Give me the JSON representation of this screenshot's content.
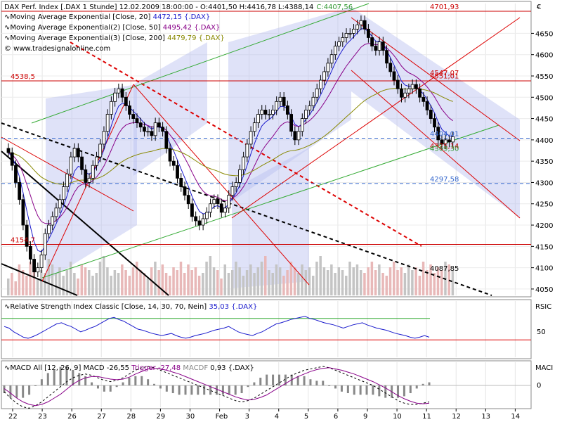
{
  "chart_data": {
    "type": "candlestick",
    "header": {
      "instrument": "DAX Perf. Index [.DAX  1 Stunde] 12.02.2009 18:00:00 - O:4401,50 H:4416,78 L:4388,14",
      "close": "C:4407,56"
    },
    "legend": [
      {
        "label": "Moving Average Exponential [Close, 20]",
        "value": "4472,15 {.DAX}",
        "color": "#1a1acc"
      },
      {
        "label": "Moving Average Exponential(2) [Close, 50]",
        "value": "4495,42 {.DAX}",
        "color": "#880088"
      },
      {
        "label": "Moving Average Exponential(3) [Close, 200]",
        "value": "4479,79 {.DAX}",
        "color": "#888800"
      }
    ],
    "watermark": "© www.tradesignalonline.com",
    "currency_label": "€",
    "y_ticks": [
      4050,
      4100,
      4150,
      4200,
      4250,
      4300,
      4350,
      4400,
      4450,
      4500,
      4550,
      4600,
      4650
    ],
    "ylim": [
      4035,
      4720
    ],
    "x_tick_labels": [
      "22",
      "23",
      "26",
      "27",
      "28",
      "29",
      "30",
      "Feb",
      "3",
      "4",
      "5",
      "6",
      "9",
      "10",
      "11",
      "12",
      "13",
      "14"
    ],
    "levels": [
      {
        "label": "4701,93",
        "value": 4701.93,
        "color": "#cc0000",
        "style": "solid"
      },
      {
        "label": "4547,07",
        "value": 4547.07,
        "color": "#cc0000",
        "style": "none"
      },
      {
        "label": "4551,01",
        "value": 4539,
        "color": "#cc0000",
        "style": "none"
      },
      {
        "label": "4538,5",
        "value": 4538.5,
        "color": "#cc0000",
        "style": "solid"
      },
      {
        "label": "4404,01",
        "value": 4404.01,
        "color": "#3366cc",
        "style": "dashed"
      },
      {
        "label": "4375,14",
        "value": 4375.14,
        "color": "#cc0000",
        "style": "none"
      },
      {
        "label": "4369,30",
        "value": 4369.3,
        "color": "#339933",
        "style": "none"
      },
      {
        "label": "4297,58",
        "value": 4297.58,
        "color": "#3366cc",
        "style": "dashed"
      },
      {
        "label": "4154,7",
        "value": 4154.7,
        "color": "#cc0000",
        "style": "solid"
      },
      {
        "label": "4087,85",
        "value": 4087.85,
        "color": "#000000",
        "style": "none"
      }
    ],
    "close_series": [
      4370,
      4340,
      4300,
      4260,
      4200,
      4150,
      4120,
      4090,
      4100,
      4130,
      4180,
      4200,
      4220,
      4240,
      4260,
      4290,
      4320,
      4360,
      4380,
      4360,
      4330,
      4300,
      4310,
      4340,
      4360,
      4390,
      4420,
      4460,
      4490,
      4510,
      4520,
      4500,
      4480,
      4460,
      4450,
      4440,
      4430,
      4420,
      4420,
      4410,
      4440,
      4430,
      4420,
      4380,
      4350,
      4340,
      4310,
      4290,
      4270,
      4250,
      4220,
      4210,
      4200,
      4215,
      4230,
      4250,
      4260,
      4250,
      4230,
      4240,
      4270,
      4290,
      4300,
      4330,
      4360,
      4390,
      4420,
      4440,
      4460,
      4470,
      4460,
      4460,
      4470,
      4490,
      4500,
      4480,
      4460,
      4420,
      4400,
      4420,
      4450,
      4470,
      4480,
      4500,
      4520,
      4540,
      4560,
      4580,
      4600,
      4620,
      4630,
      4640,
      4650,
      4650,
      4660,
      4670,
      4680,
      4660,
      4640,
      4620,
      4610,
      4630,
      4610,
      4580,
      4560,
      4540,
      4520,
      4500,
      4510,
      4520,
      4530,
      4520,
      4500,
      4490,
      4470,
      4450,
      4430,
      4400,
      4390,
      4400,
      4395,
      4407.56
    ],
    "volume": [
      30,
      40,
      25,
      55,
      45,
      35,
      60,
      50,
      30,
      45,
      40,
      65,
      55,
      40,
      50,
      35,
      45,
      60,
      40,
      30,
      55,
      50,
      45,
      35,
      40,
      60,
      70,
      50,
      35,
      45,
      40,
      55,
      45,
      35,
      50,
      60,
      45,
      40,
      30,
      50,
      60,
      45,
      55,
      40,
      35,
      50,
      45,
      60,
      40,
      55,
      45,
      50,
      35,
      40,
      60,
      70,
      50,
      45,
      30,
      55,
      40,
      45,
      60,
      50,
      35,
      45,
      55,
      40,
      50,
      60,
      70,
      45,
      40,
      55,
      50,
      35,
      45,
      60,
      50,
      40,
      55,
      45,
      50,
      35,
      60,
      70,
      50,
      45,
      55,
      40,
      50,
      45,
      35,
      60,
      50,
      55,
      45,
      40,
      50,
      60,
      45,
      55,
      40,
      35,
      50,
      60,
      45,
      50,
      40,
      55,
      45,
      50,
      35,
      60,
      45,
      55,
      40,
      50,
      45,
      60,
      55,
      45
    ],
    "rsi": {
      "label": "Relative Strength Index Classic [Close, 14, 30, 70, Nein]",
      "value": "35,03 {.DAX}",
      "panel_label": "RSIC",
      "tick_label": "50",
      "upper": 70,
      "lower": 30,
      "series": [
        55,
        52,
        45,
        40,
        35,
        33,
        36,
        40,
        45,
        50,
        55,
        60,
        62,
        58,
        55,
        50,
        45,
        48,
        52,
        55,
        60,
        65,
        70,
        72,
        68,
        65,
        60,
        55,
        50,
        48,
        45,
        42,
        40,
        38,
        40,
        42,
        38,
        35,
        33,
        35,
        38,
        40,
        42,
        45,
        48,
        50,
        52,
        55,
        50,
        45,
        42,
        40,
        38,
        42,
        45,
        50,
        55,
        60,
        62,
        65,
        68,
        70,
        72,
        74,
        70,
        68,
        65,
        62,
        60,
        58,
        55,
        52,
        55,
        58,
        60,
        62,
        58,
        55,
        52,
        50,
        48,
        45,
        42,
        40,
        38,
        35,
        33,
        35,
        38,
        35
      ]
    },
    "macd": {
      "label": "MACD All [12, 26, 9] MACD",
      "macd_value": "-26,55",
      "trigger_label": "Trigger",
      "trigger_value": "-27,48",
      "macdf_label": "MACDF",
      "macdf_value": "0,93 {.DAX}",
      "panel_label": "MACI",
      "tick_label": "0",
      "macd_series": [
        -10,
        -20,
        -28,
        -34,
        -36,
        -32,
        -26,
        -18,
        -10,
        -2,
        6,
        12,
        16,
        18,
        16,
        12,
        8,
        6,
        8,
        12,
        18,
        24,
        28,
        30,
        28,
        24,
        20,
        16,
        12,
        8,
        4,
        0,
        -4,
        -8,
        -12,
        -16,
        -20,
        -24,
        -26,
        -24,
        -20,
        -14,
        -8,
        -2,
        4,
        10,
        16,
        20,
        24,
        26,
        28,
        30,
        28,
        24,
        20,
        16,
        12,
        8,
        4,
        0,
        -6,
        -12,
        -18,
        -24,
        -28,
        -30,
        -30,
        -28,
        -26
      ],
      "trigger_series": [
        -5,
        -12,
        -20,
        -26,
        -30,
        -32,
        -30,
        -26,
        -20,
        -14,
        -6,
        2,
        8,
        12,
        14,
        14,
        12,
        10,
        9,
        10,
        13,
        18,
        22,
        26,
        27,
        26,
        24,
        21,
        18,
        14,
        10,
        6,
        2,
        -2,
        -6,
        -10,
        -14,
        -18,
        -21,
        -23,
        -22,
        -19,
        -15,
        -9,
        -3,
        3,
        9,
        14,
        18,
        22,
        25,
        27,
        28,
        26,
        24,
        21,
        18,
        14,
        10,
        6,
        1,
        -4,
        -10,
        -16,
        -21,
        -25,
        -28,
        -29,
        -28
      ]
    }
  }
}
